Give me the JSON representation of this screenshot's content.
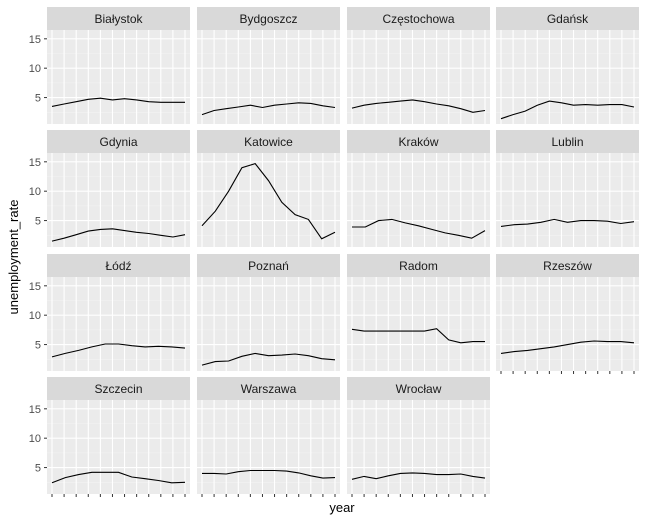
{
  "chart_data": {
    "type": "line",
    "facet": "wrap",
    "xlabel": "year",
    "ylabel": "unemployment_rate",
    "ylim": [
      0.5,
      16.5
    ],
    "yticks": [
      5,
      10,
      15
    ],
    "x_count": 12,
    "colors": {
      "panel_bg": "#ebebeb",
      "strip_bg": "#d9d9d9",
      "grid_major": "#ffffff",
      "grid_minor": "#f4f4f4",
      "line": "#000000",
      "tick": "#333333"
    },
    "panels": [
      {
        "name": "Białystok",
        "values": [
          3.5,
          3.9,
          4.3,
          4.7,
          4.9,
          4.6,
          4.8,
          4.6,
          4.3,
          4.2,
          4.2,
          4.2
        ]
      },
      {
        "name": "Bydgoszcz",
        "values": [
          2.1,
          2.8,
          3.1,
          3.4,
          3.7,
          3.3,
          3.7,
          3.9,
          4.1,
          4.0,
          3.6,
          3.3
        ]
      },
      {
        "name": "Częstochowa",
        "values": [
          3.2,
          3.7,
          4.0,
          4.2,
          4.4,
          4.6,
          4.3,
          3.9,
          3.6,
          3.1,
          2.5,
          2.8
        ]
      },
      {
        "name": "Gdańsk",
        "values": [
          1.4,
          2.1,
          2.7,
          3.7,
          4.4,
          4.1,
          3.7,
          3.8,
          3.7,
          3.8,
          3.8,
          3.4
        ]
      },
      {
        "name": "Gdynia",
        "values": [
          1.5,
          2.0,
          2.6,
          3.2,
          3.5,
          3.6,
          3.3,
          3.0,
          2.8,
          2.5,
          2.2,
          2.6
        ]
      },
      {
        "name": "Katowice",
        "values": [
          4.1,
          6.6,
          10.0,
          14.0,
          14.7,
          11.8,
          8.1,
          6.0,
          5.2,
          1.9,
          3.0
        ]
      },
      {
        "name": "Kraków",
        "values": [
          3.9,
          3.9,
          5.0,
          5.2,
          4.6,
          4.1,
          3.5,
          2.9,
          2.5,
          2.0,
          3.3
        ]
      },
      {
        "name": "Lublin",
        "values": [
          4.0,
          4.3,
          4.4,
          4.7,
          5.2,
          4.7,
          5.0,
          5.0,
          4.9,
          4.5,
          4.8
        ]
      },
      {
        "name": "Łódź",
        "values": [
          2.9,
          3.5,
          4.0,
          4.6,
          5.1,
          5.1,
          4.8,
          4.6,
          4.7,
          4.6,
          4.4
        ]
      },
      {
        "name": "Poznań",
        "values": [
          1.5,
          2.1,
          2.2,
          3.0,
          3.5,
          3.1,
          3.2,
          3.4,
          3.1,
          2.6,
          2.4
        ]
      },
      {
        "name": "Radom",
        "values": [
          7.6,
          7.3,
          7.3,
          7.3,
          7.3,
          7.3,
          7.3,
          7.7,
          5.8,
          5.3,
          5.5,
          5.5
        ]
      },
      {
        "name": "Rzeszów",
        "values": [
          3.5,
          3.8,
          4.0,
          4.3,
          4.6,
          5.0,
          5.4,
          5.6,
          5.5,
          5.5,
          5.3
        ]
      },
      {
        "name": "Szczecin",
        "values": [
          2.4,
          3.3,
          3.8,
          4.2,
          4.2,
          4.2,
          3.4,
          3.1,
          2.8,
          2.4,
          2.5
        ]
      },
      {
        "name": "Warszawa",
        "values": [
          4.0,
          4.0,
          3.9,
          4.3,
          4.5,
          4.5,
          4.5,
          4.4,
          4.1,
          3.6,
          3.2,
          3.3
        ]
      },
      {
        "name": "Wrocław",
        "values": [
          3.0,
          3.5,
          3.1,
          3.6,
          4.0,
          4.1,
          4.0,
          3.8,
          3.8,
          3.9,
          3.5,
          3.2
        ]
      }
    ]
  }
}
